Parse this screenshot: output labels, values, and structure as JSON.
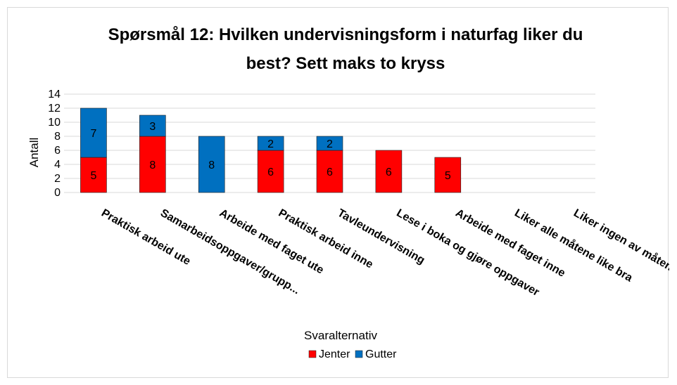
{
  "chart_data": {
    "type": "bar",
    "stacked": true,
    "title_lines": [
      "Spørsmål 12: Hvilken undervisningsform i naturfag liker du",
      "best? Sett maks to kryss"
    ],
    "xlabel": "Svaralternativ",
    "ylabel": "Antall",
    "ylim": [
      0,
      14
    ],
    "yticks": [
      0,
      2,
      4,
      6,
      8,
      10,
      12,
      14
    ],
    "grid": true,
    "legend_position": "bottom",
    "categories": [
      "Praktisk arbeid ute",
      "Samarbeidsoppgaver/grupp...",
      "Arbeide med faget ute",
      "Praktisk arbeid inne",
      "Tavleundervisning",
      "Lese i boka og gjøre oppgaver",
      "Arbeide med faget inne",
      "Liker alle måtene like bra",
      "Liker ingen av måtene"
    ],
    "series": [
      {
        "name": "Jenter",
        "color": "#ff0000",
        "values": [
          5,
          8,
          0,
          6,
          6,
          6,
          5,
          0,
          0
        ],
        "labels": [
          "5",
          "8",
          "",
          "6",
          "6",
          "6",
          "5",
          "",
          ""
        ]
      },
      {
        "name": "Gutter",
        "color": "#0070c0",
        "values": [
          7,
          3,
          8,
          2,
          2,
          0,
          0,
          0,
          0
        ],
        "labels": [
          "7",
          "3",
          "8",
          "2",
          "2",
          "",
          "",
          "",
          ""
        ]
      }
    ]
  }
}
